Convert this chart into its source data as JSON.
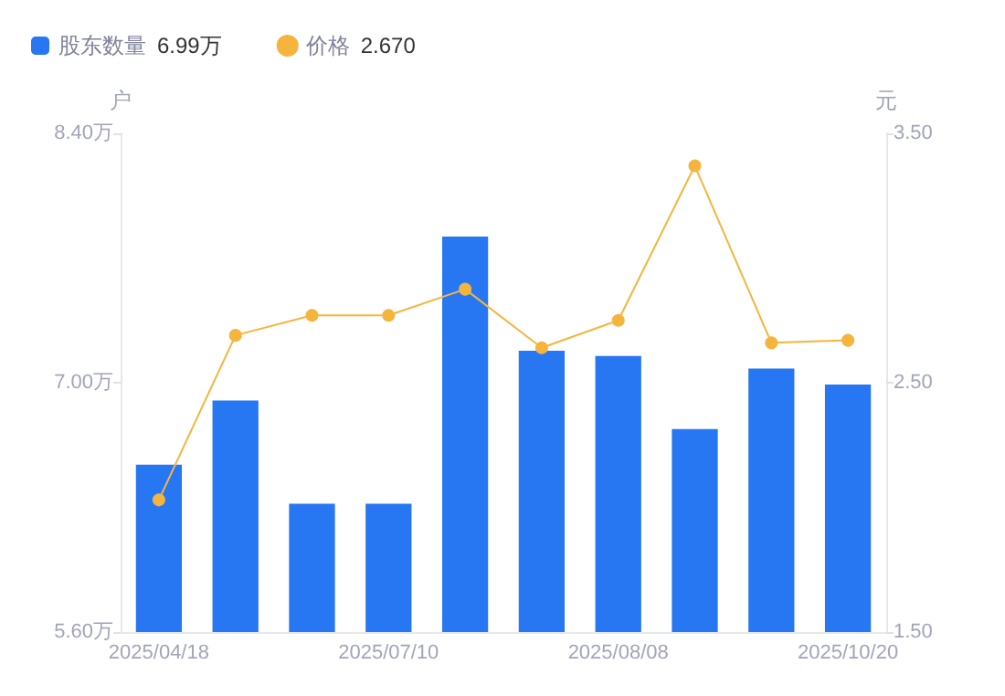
{
  "chart_data": {
    "type": "bar",
    "categories": [
      "2025/04/18",
      null,
      null,
      "2025/07/10",
      null,
      null,
      "2025/08/08",
      null,
      null,
      "2025/10/20"
    ],
    "series": [
      {
        "name": "股东数量 6.99万",
        "color": "#2777f3",
        "values": [
          6.54,
          6.9,
          6.32,
          6.32,
          7.82,
          7.18,
          7.15,
          6.74,
          7.08,
          6.99
        ]
      },
      {
        "name": "价格 2.670",
        "type": "line",
        "axis": "y2",
        "color": "#f5b53d",
        "values": [
          2.03,
          2.69,
          2.77,
          2.77,
          2.875,
          2.64,
          2.75,
          3.37,
          2.66,
          2.67
        ]
      }
    ],
    "ylabel": "户",
    "y2label": "元",
    "ylim": [
      5.6,
      8.4
    ],
    "yticks": [
      {
        "value": 5.6,
        "label": "5.60万"
      },
      {
        "value": 7.0,
        "label": "7.00万"
      },
      {
        "value": 8.4,
        "label": "8.40万"
      }
    ],
    "y2lim": [
      1.5,
      3.5
    ],
    "y2ticks": [
      {
        "value": 1.5,
        "label": "1.50"
      },
      {
        "value": 2.5,
        "label": "2.50"
      },
      {
        "value": 3.5,
        "label": "3.50"
      }
    ],
    "legend": "top left",
    "grid": false,
    "marker": "circle",
    "line_style": "solid"
  }
}
